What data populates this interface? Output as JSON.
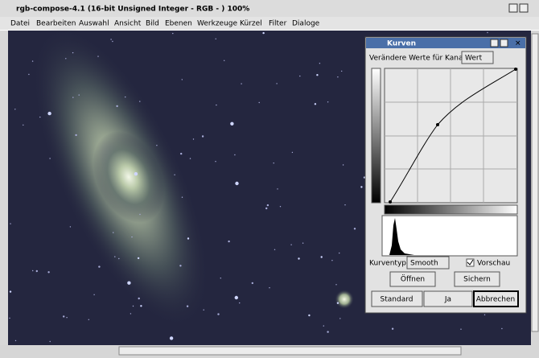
{
  "window": {
    "title": "rgb-compose-4.1 (16-bit Unsigned Integer - RGB - ) 100%"
  },
  "menu": {
    "items": [
      "Datei",
      "Bearbeiten",
      "Auswahl",
      "Ansicht",
      "Bild",
      "Ebenen",
      "Werkzeuge",
      "Kürzel",
      "Filter",
      "Dialoge"
    ]
  },
  "dialog": {
    "title": "Kurven",
    "channel_label": "Verändere Werte für Kanal:",
    "channel_value": "Wert",
    "curve_type_label": "Kurventyp:",
    "curve_type_value": "Smooth",
    "preview_label": "Vorschau",
    "open_button": "Öffnen",
    "save_button": "Sichern",
    "standard_button": "Standard",
    "ok_button": "Ja",
    "cancel_button": "Abbrechen"
  }
}
